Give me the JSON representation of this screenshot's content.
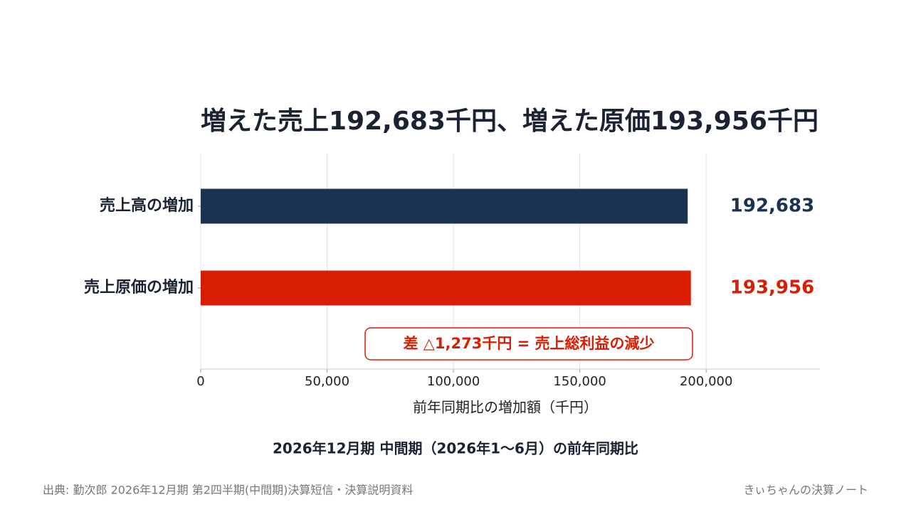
{
  "chart_data": {
    "type": "bar",
    "orientation": "horizontal",
    "title": "増えた売上192,683千円、増えた原価193,956千円",
    "categories": [
      "売上高の増加",
      "売上原価の増加"
    ],
    "values": [
      192683,
      193956
    ],
    "value_labels": [
      "192,683",
      "193,956"
    ],
    "colors": [
      "#1b3350",
      "#d91e05"
    ],
    "xlim": [
      0,
      245000
    ],
    "xticks": [
      0,
      {
        "value": 50000,
        "label": "50,000"
      },
      {
        "value": 100000,
        "label": "100,000"
      },
      {
        "value": 150000,
        "label": "150,000"
      },
      {
        "value": 200000,
        "label": "200,000"
      }
    ],
    "grid": true,
    "xlabel": "前年同期比の増加額（千円）",
    "annotation": "差 △1,273千円 = 売上総利益の減少",
    "subtitle": "2026年12月期 中間期（2026年1〜6月）の前年同期比",
    "source": "出典: 勤次郎 2026年12月期 第2四半期(中間期)決算短信・決算説明資料",
    "credit": "きぃちゃんの決算ノート"
  }
}
